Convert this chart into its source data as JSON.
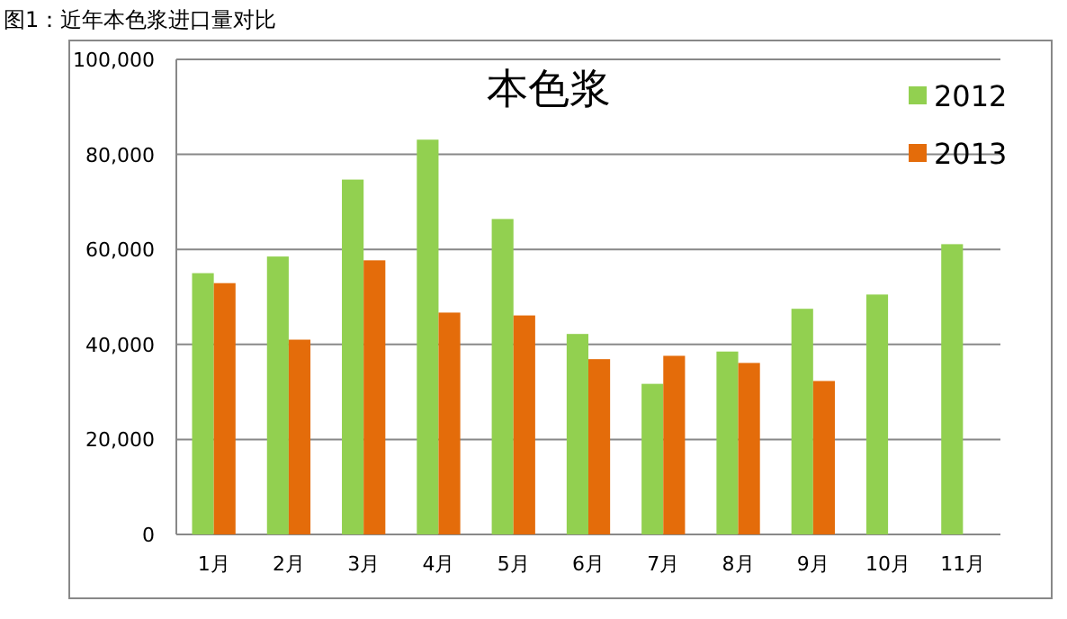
{
  "chart_data": {
    "type": "bar",
    "title": "本色浆",
    "annotations": [
      "图1：近年本色浆进口量对比"
    ],
    "categories": [
      "1月",
      "2月",
      "3月",
      "4月",
      "5月",
      "6月",
      "7月",
      "8月",
      "9月",
      "10月",
      "11月"
    ],
    "series": [
      {
        "name": "2012",
        "color": "#92d050",
        "values": [
          55000,
          58500,
          74700,
          83100,
          66400,
          42200,
          31700,
          38500,
          47500,
          50500,
          61100
        ]
      },
      {
        "name": "2013",
        "color": "#e46c0a",
        "values": [
          52900,
          41000,
          57700,
          46700,
          46100,
          36900,
          37600,
          36100,
          32300,
          null,
          null
        ]
      }
    ],
    "ylim": [
      0,
      100000
    ],
    "yticks": [
      {
        "value": 0,
        "label": "0"
      },
      {
        "value": 20000,
        "label": "20,000"
      },
      {
        "value": 40000,
        "label": "40,000"
      },
      {
        "value": 60000,
        "label": "60,000"
      },
      {
        "value": 80000,
        "label": "80,000"
      },
      {
        "value": 100000,
        "label": "100,000"
      }
    ],
    "grid": "y",
    "legend": "top right"
  }
}
